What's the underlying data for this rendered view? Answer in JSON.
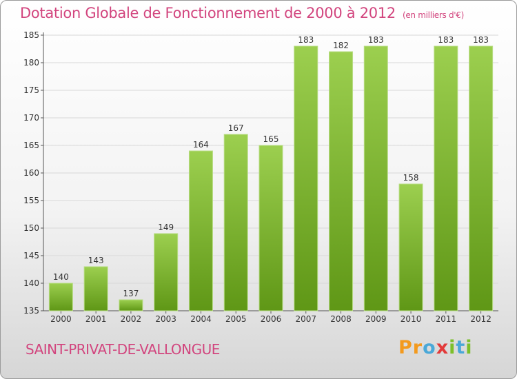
{
  "header": {
    "title": "Dotation Globale de Fonctionnement de 2000 à 2012",
    "unit_note": "(en milliers d'€)"
  },
  "footer": {
    "town": "SAINT-PRIVAT-DE-VALLONGUE",
    "logo_letters": [
      "P",
      "r",
      "o",
      "x",
      "i",
      "t",
      "i"
    ],
    "logo_colors": [
      "#f39a1e",
      "#f39a1e",
      "#4aa8d8",
      "#e23a3a",
      "#7cbf2a",
      "#4aa8d8",
      "#7cbf2a"
    ]
  },
  "chart_data": {
    "type": "bar",
    "categories": [
      "2000",
      "2001",
      "2002",
      "2003",
      "2004",
      "2005",
      "2006",
      "2007",
      "2008",
      "2009",
      "2010",
      "2011",
      "2012"
    ],
    "values": [
      140,
      143,
      137,
      149,
      164,
      167,
      165,
      183,
      182,
      183,
      158,
      183,
      183
    ],
    "value_labels": [
      "140",
      "143",
      "137",
      "149",
      "164",
      "167",
      "165",
      "183",
      "182",
      "183",
      "158",
      "183",
      "183"
    ],
    "yticks": [
      "135",
      "140",
      "145",
      "150",
      "155",
      "160",
      "165",
      "170",
      "175",
      "180",
      "185"
    ],
    "ylim": [
      135,
      185
    ],
    "grid": true,
    "colors": {
      "bar_top": "#9ccf4f",
      "bar_bottom": "#5f9716",
      "grid": "#d8d8d8",
      "text": "#333333"
    }
  }
}
